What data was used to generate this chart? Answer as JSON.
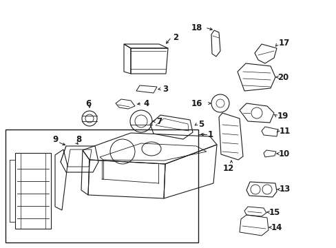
{
  "background_color": "#ffffff",
  "line_color": "#1a1a1a",
  "fig_width": 4.89,
  "fig_height": 3.6,
  "dpi": 100,
  "parts": {
    "label_fontsize": 8.5,
    "label_fontweight": "bold"
  }
}
